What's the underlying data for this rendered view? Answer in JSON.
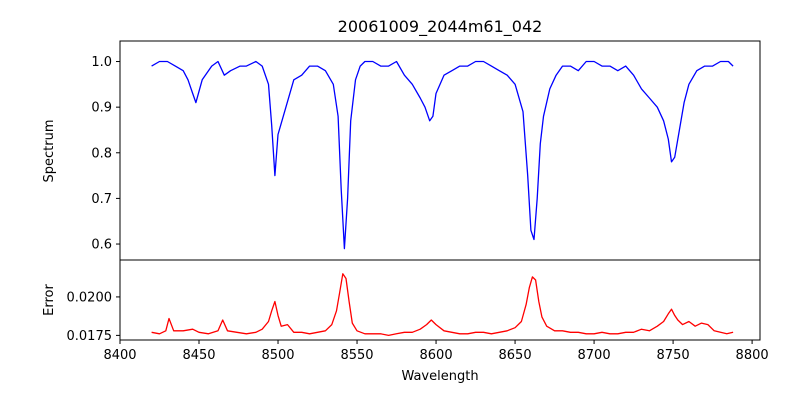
{
  "chart_data": [
    {
      "type": "line",
      "title": "20061009_2044m61_042",
      "xlabel": "",
      "ylabel": "Spectrum",
      "xlim": [
        8400,
        8805
      ],
      "ylim": [
        0.565,
        1.045
      ],
      "yticks": [
        0.6,
        0.7,
        0.8,
        0.9,
        1.0
      ],
      "yticklabels": [
        "0.6",
        "0.7",
        "0.8",
        "0.9",
        "1.0"
      ],
      "color": "#0000ff",
      "grid": false,
      "series": [
        {
          "x": [
            8420,
            8425,
            8430,
            8435,
            8440,
            8443,
            8446,
            8448,
            8452,
            8458,
            8462,
            8466,
            8470,
            8476,
            8480,
            8486,
            8490,
            8494,
            8496,
            8498,
            8500,
            8505,
            8510,
            8515,
            8520,
            8525,
            8530,
            8535,
            8538,
            8540,
            8542,
            8544,
            8546,
            8549,
            8552,
            8555,
            8560,
            8565,
            8570,
            8575,
            8580,
            8585,
            8590,
            8593,
            8596,
            8598,
            8600,
            8605,
            8610,
            8615,
            8620,
            8625,
            8630,
            8635,
            8640,
            8645,
            8650,
            8655,
            8658,
            8660,
            8662,
            8664,
            8666,
            8668,
            8672,
            8676,
            8680,
            8685,
            8690,
            8695,
            8700,
            8705,
            8710,
            8715,
            8720,
            8725,
            8730,
            8735,
            8740,
            8744,
            8747,
            8749,
            8751,
            8754,
            8757,
            8760,
            8765,
            8770,
            8775,
            8780,
            8785,
            8788
          ],
          "y": [
            0.99,
            1.0,
            1.0,
            0.99,
            0.98,
            0.96,
            0.93,
            0.91,
            0.96,
            0.99,
            1.0,
            0.97,
            0.98,
            0.99,
            0.99,
            1.0,
            0.99,
            0.95,
            0.86,
            0.75,
            0.84,
            0.9,
            0.96,
            0.97,
            0.99,
            0.99,
            0.98,
            0.95,
            0.88,
            0.72,
            0.59,
            0.7,
            0.87,
            0.96,
            0.99,
            1.0,
            1.0,
            0.99,
            0.99,
            1.0,
            0.97,
            0.95,
            0.92,
            0.9,
            0.87,
            0.88,
            0.93,
            0.97,
            0.98,
            0.99,
            0.99,
            1.0,
            1.0,
            0.99,
            0.98,
            0.97,
            0.95,
            0.89,
            0.75,
            0.63,
            0.61,
            0.7,
            0.82,
            0.88,
            0.94,
            0.97,
            0.99,
            0.99,
            0.98,
            1.0,
            1.0,
            0.99,
            0.99,
            0.98,
            0.99,
            0.97,
            0.94,
            0.92,
            0.9,
            0.87,
            0.83,
            0.78,
            0.79,
            0.85,
            0.91,
            0.95,
            0.98,
            0.99,
            0.99,
            1.0,
            1.0,
            0.99
          ]
        }
      ]
    },
    {
      "type": "line",
      "title": "",
      "xlabel": "Wavelength",
      "ylabel": "Error",
      "xlim": [
        8400,
        8805
      ],
      "ylim": [
        0.0172,
        0.0224
      ],
      "xticks": [
        8400,
        8450,
        8500,
        8550,
        8600,
        8650,
        8700,
        8750,
        8800
      ],
      "xticklabels": [
        "8400",
        "8450",
        "8500",
        "8550",
        "8600",
        "8650",
        "8700",
        "8750",
        "8800"
      ],
      "yticks": [
        0.0175,
        0.02
      ],
      "yticklabels": [
        "0.0175",
        "0.0200"
      ],
      "color": "#ff0000",
      "grid": false,
      "series": [
        {
          "x": [
            8420,
            8425,
            8429,
            8431,
            8434,
            8440,
            8446,
            8450,
            8456,
            8462,
            8465,
            8468,
            8474,
            8480,
            8486,
            8490,
            8494,
            8496,
            8498,
            8500,
            8502,
            8506,
            8510,
            8515,
            8520,
            8525,
            8530,
            8534,
            8537,
            8539,
            8541,
            8543,
            8545,
            8547,
            8550,
            8555,
            8560,
            8565,
            8570,
            8575,
            8580,
            8585,
            8590,
            8594,
            8597,
            8600,
            8605,
            8610,
            8615,
            8620,
            8625,
            8630,
            8635,
            8640,
            8645,
            8650,
            8654,
            8657,
            8659,
            8661,
            8663,
            8665,
            8667,
            8670,
            8675,
            8680,
            8685,
            8690,
            8695,
            8700,
            8705,
            8710,
            8715,
            8720,
            8725,
            8730,
            8735,
            8740,
            8744,
            8747,
            8749,
            8751,
            8753,
            8756,
            8760,
            8764,
            8768,
            8772,
            8776,
            8780,
            8784,
            8788
          ],
          "y": [
            0.0177,
            0.0176,
            0.0178,
            0.0186,
            0.0178,
            0.0178,
            0.0179,
            0.0177,
            0.0176,
            0.0178,
            0.0185,
            0.0178,
            0.0177,
            0.0176,
            0.0177,
            0.0179,
            0.0184,
            0.0191,
            0.0197,
            0.0188,
            0.0181,
            0.0182,
            0.0177,
            0.0177,
            0.0176,
            0.0177,
            0.0178,
            0.0182,
            0.0191,
            0.0203,
            0.0215,
            0.0212,
            0.0197,
            0.0183,
            0.0178,
            0.0176,
            0.0176,
            0.0176,
            0.0175,
            0.0176,
            0.0177,
            0.0177,
            0.0179,
            0.0182,
            0.0185,
            0.0182,
            0.0178,
            0.0177,
            0.0176,
            0.0176,
            0.0177,
            0.0177,
            0.0176,
            0.0177,
            0.0178,
            0.018,
            0.0184,
            0.0195,
            0.0206,
            0.0213,
            0.0211,
            0.0197,
            0.0187,
            0.0181,
            0.0178,
            0.0178,
            0.0177,
            0.0177,
            0.0176,
            0.0176,
            0.0177,
            0.0176,
            0.0176,
            0.0177,
            0.0177,
            0.0179,
            0.0178,
            0.0181,
            0.0184,
            0.0189,
            0.0192,
            0.0188,
            0.0185,
            0.0182,
            0.0184,
            0.0181,
            0.0183,
            0.0182,
            0.0178,
            0.0177,
            0.0176,
            0.0177
          ]
        }
      ]
    }
  ]
}
